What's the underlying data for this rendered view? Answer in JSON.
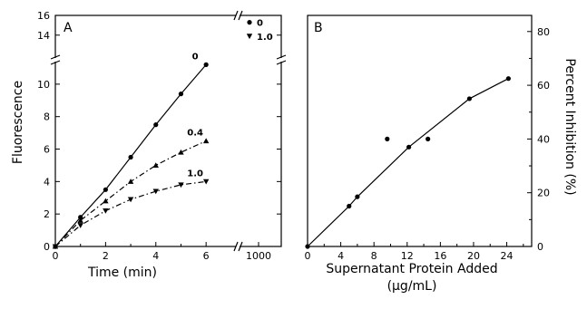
{
  "chart_data": [
    {
      "type": "line",
      "panel_label": "A",
      "xlabel": "Time (min)",
      "ylabel": "Fluorescence",
      "x_ticks": [
        0,
        2,
        4,
        6
      ],
      "x_break_tick": 1000,
      "y_ticks": [
        0,
        2,
        4,
        6,
        8,
        10
      ],
      "y_break_ticks": [
        14,
        16
      ],
      "xlim": [
        0,
        6.5
      ],
      "ylim": [
        0,
        11.5
      ],
      "break_ylim": [
        11.5,
        16
      ],
      "grid": false,
      "series": [
        {
          "name": "0",
          "marker": "circle",
          "line": "solid",
          "color": "#000000",
          "x": [
            0,
            1,
            2,
            3,
            4,
            5,
            6
          ],
          "y": [
            0,
            1.8,
            3.5,
            5.5,
            7.5,
            9.4,
            11.2
          ],
          "break_point": {
            "x": 1000,
            "y": 15.3
          }
        },
        {
          "name": "0.4",
          "marker": "triangle-up",
          "line": "dashed",
          "color": "#000000",
          "x": [
            0,
            1,
            2,
            3,
            4,
            5,
            6
          ],
          "y": [
            0,
            1.6,
            2.8,
            4.0,
            5.0,
            5.8,
            6.5
          ]
        },
        {
          "name": "1.0",
          "marker": "triangle-down",
          "line": "dashed",
          "color": "#000000",
          "x": [
            0,
            1,
            2,
            3,
            4,
            5,
            6
          ],
          "y": [
            0,
            1.3,
            2.2,
            2.9,
            3.4,
            3.8,
            4.0
          ],
          "break_point": {
            "x": 1000,
            "y": 13.9
          }
        }
      ],
      "legend": {
        "placement": "top-right",
        "entries": [
          "0",
          "1.0"
        ]
      }
    },
    {
      "type": "line",
      "panel_label": "B",
      "xlabel_line1": "Supernatant Protein Added",
      "xlabel_line2": "(μg/mL)",
      "ylabel": "Percent Inhibition (%)",
      "y_axis_side": "right",
      "x_ticks": [
        0,
        4,
        8,
        12,
        16,
        20,
        24
      ],
      "y_ticks": [
        0,
        20,
        40,
        60,
        80
      ],
      "xlim": [
        0,
        27
      ],
      "ylim": [
        0,
        86
      ],
      "grid": false,
      "series": [
        {
          "marker": "circle",
          "line": "solid",
          "color": "#000000",
          "x": [
            0,
            5,
            6,
            12.2,
            19.5,
            24.2
          ],
          "y": [
            0,
            15,
            18.5,
            37,
            55,
            62.5
          ]
        },
        {
          "marker": "circle",
          "line": "none",
          "color": "#000000",
          "x": [
            9.6,
            14.5
          ],
          "y": [
            40,
            40
          ]
        }
      ]
    }
  ]
}
